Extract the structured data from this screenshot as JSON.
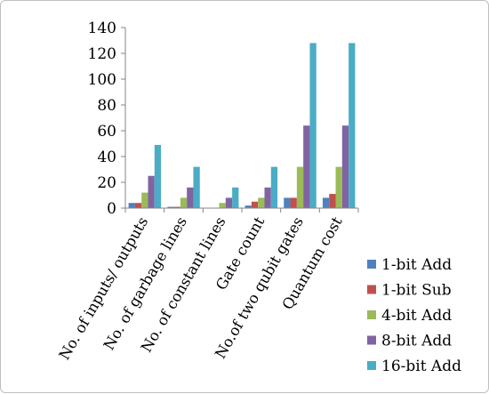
{
  "chart_data": {
    "type": "bar",
    "title": "",
    "xlabel": "",
    "ylabel": "",
    "ylim": [
      0,
      140
    ],
    "yticks": [
      0,
      20,
      40,
      60,
      80,
      100,
      120,
      140
    ],
    "grid": false,
    "legend_position": "right",
    "categories": [
      "No. of inputs/ outputs",
      "No. of garbage lines",
      "No. of constant lines",
      "Gate count",
      "No.of two qubit gates",
      "Quantum cost"
    ],
    "series": [
      {
        "name": "1-bit Add",
        "color": "#4f81bd",
        "values": [
          4,
          1,
          0,
          2,
          8,
          8
        ]
      },
      {
        "name": "1-bit Sub",
        "color": "#c0504d",
        "values": [
          4,
          1,
          0,
          5,
          8,
          11
        ]
      },
      {
        "name": "4-bit Add",
        "color": "#9bbb59",
        "values": [
          12,
          8,
          4,
          8,
          32,
          32
        ]
      },
      {
        "name": "8-bit Add",
        "color": "#8064a2",
        "values": [
          25,
          16,
          8,
          16,
          64,
          64
        ]
      },
      {
        "name": "16-bit Add",
        "color": "#4bacc6",
        "values": [
          49,
          32,
          16,
          32,
          128,
          128
        ]
      }
    ]
  }
}
